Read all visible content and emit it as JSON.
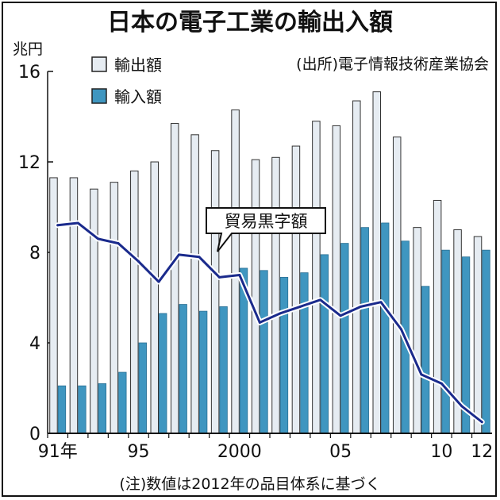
{
  "chart_data": {
    "type": "bar",
    "title": "日本の電子工業の輸出入額",
    "unit_label": "兆円",
    "source": "(出所)電子情報技術産業協会",
    "note": "(注)数値は2012年の品目体系に基づく",
    "ylim": [
      0,
      16
    ],
    "yticks": [
      "0",
      "4",
      "8",
      "12",
      "16"
    ],
    "x": [
      1991,
      1992,
      1993,
      1994,
      1995,
      1996,
      1997,
      1998,
      1999,
      2000,
      2001,
      2002,
      2003,
      2004,
      2005,
      2006,
      2007,
      2008,
      2009,
      2010,
      2011,
      2012
    ],
    "xtick_labels": [
      {
        "year": 1991,
        "label": "91年"
      },
      {
        "year": 1995,
        "label": "95"
      },
      {
        "year": 2000,
        "label": "2000"
      },
      {
        "year": 2005,
        "label": "05"
      },
      {
        "year": 2010,
        "label": "10"
      },
      {
        "year": 2012,
        "label": "12"
      }
    ],
    "series": [
      {
        "name": "輸出額",
        "kind": "bar",
        "color": "#e6ecf2",
        "values": [
          11.3,
          11.3,
          10.8,
          11.1,
          11.6,
          12.0,
          13.7,
          13.2,
          12.5,
          14.3,
          12.1,
          12.2,
          12.7,
          13.8,
          13.6,
          14.7,
          15.1,
          13.1,
          9.1,
          10.3,
          9.0,
          8.7
        ]
      },
      {
        "name": "輸入額",
        "kind": "bar",
        "color": "#3f96c0",
        "values": [
          2.1,
          2.1,
          2.2,
          2.7,
          4.0,
          5.3,
          5.7,
          5.4,
          5.6,
          7.3,
          7.2,
          6.9,
          7.1,
          7.9,
          8.4,
          9.1,
          9.3,
          8.5,
          6.5,
          8.1,
          7.8,
          8.1
        ]
      },
      {
        "name": "貿易黒字額",
        "kind": "line",
        "color": "#1a2a8c",
        "values": [
          9.2,
          9.3,
          8.6,
          8.4,
          7.6,
          6.7,
          7.9,
          7.8,
          6.9,
          7.0,
          4.9,
          5.3,
          5.6,
          5.9,
          5.2,
          5.6,
          5.8,
          4.6,
          2.6,
          2.2,
          1.2,
          0.5
        ]
      }
    ],
    "grid": false,
    "legend_position": "top-left"
  }
}
